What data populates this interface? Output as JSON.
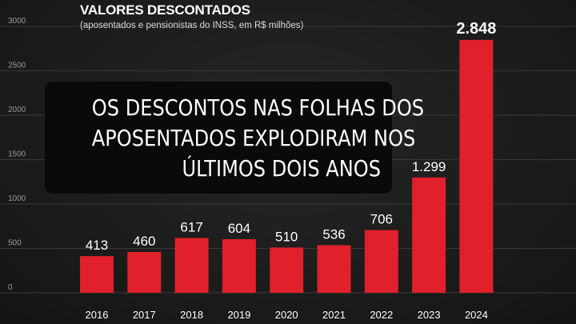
{
  "header": {
    "title": "VALORES DESCONTADOS",
    "subtitle": "(aposentados e pensionistas do INSS, em R$ milhões)"
  },
  "overlay": {
    "lines": [
      "OS DESCONTOS NAS FOLHAS DOS",
      "APOSENTADOS EXPLODIRAM NOS",
      "ÚLTIMOS DOIS ANOS"
    ]
  },
  "chart_data": {
    "type": "bar",
    "title": "VALORES DESCONTADOS",
    "subtitle": "(aposentados e pensionistas do INSS, em R$ milhões)",
    "categories": [
      "2016",
      "2017",
      "2018",
      "2019",
      "2020",
      "2021",
      "2022",
      "2023",
      "2024"
    ],
    "values": [
      413,
      460,
      617,
      604,
      510,
      536,
      706,
      1299,
      2848
    ],
    "value_labels": [
      "413",
      "460",
      "617",
      "604",
      "510",
      "536",
      "706",
      "1.299",
      "2.848"
    ],
    "yticks": [
      "0",
      "500",
      "1000",
      "1500",
      "2000",
      "2500",
      "3000"
    ],
    "ylim": [
      0,
      3000
    ],
    "grid": true,
    "colors": {
      "bar": "#e0202a",
      "grid": "#3a3a3a",
      "text": "#ffffff",
      "tick": "#9a9a9a"
    }
  }
}
